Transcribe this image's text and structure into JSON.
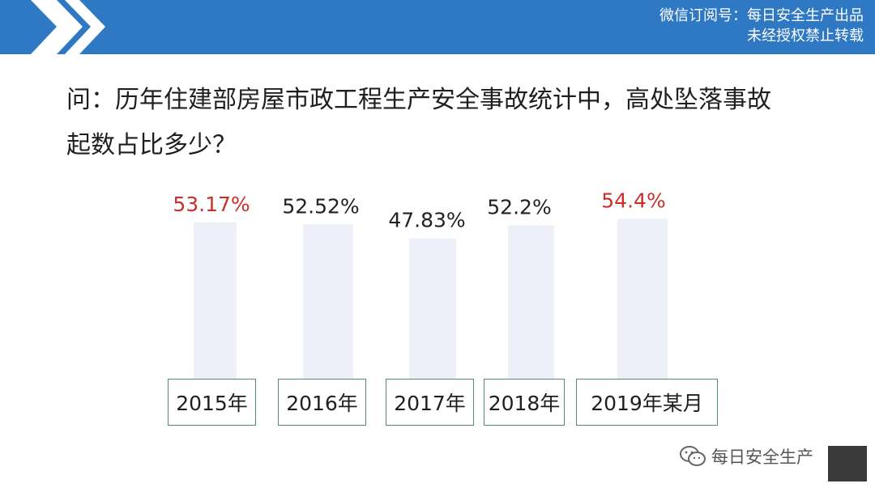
{
  "header": {
    "line1": "微信订阅号：每日安全生产出品",
    "line2": "未经授权禁止转载",
    "decoration": "double-chevron-icon"
  },
  "question": {
    "line1": "问：历年住建部房屋市政工程生产安全事故统计中，高处坠落事故",
    "line2": "起数占比多少？"
  },
  "chart_data": {
    "type": "bar",
    "categories": [
      "2015年",
      "2016年",
      "2017年",
      "2018年",
      "2019年某月"
    ],
    "values": [
      53.17,
      52.52,
      47.83,
      52.2,
      54.4
    ],
    "value_labels": [
      "53.17%",
      "52.52%",
      "47.83%",
      "52.2%",
      "54.4%"
    ],
    "highlighted": [
      true,
      false,
      false,
      false,
      true
    ],
    "unit": "%",
    "title": "",
    "xlabel": "",
    "ylabel": "",
    "ylim": [
      0,
      60
    ],
    "grid": false,
    "legend": "none",
    "colors": {
      "bar": "#eef0f9",
      "label_normal": "#222222",
      "label_highlight": "#c9302c",
      "category_border": "#4f8b78"
    }
  },
  "watermark": {
    "icon": "wechat-icon",
    "text": "每日安全生产"
  },
  "colors": {
    "header_bg": "#2f78c4",
    "header_text": "#ffffff"
  }
}
